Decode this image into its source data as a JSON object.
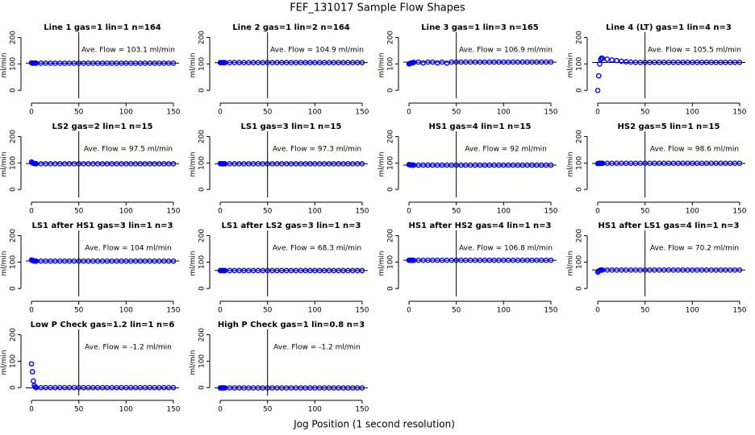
{
  "title": "FEF_131017  Sample Flow Shapes",
  "xlabel": "Jog Position (1 second resolution)",
  "chart_data": [
    {
      "type": "scatter",
      "title": "Line 1 gas=1 lin=1 n=164",
      "ylabel": "ml/min",
      "annotation": "Ave. Flow = 103.1  ml/min",
      "color": "#0000ff",
      "xlim": [
        -6,
        156
      ],
      "ylim": [
        -30,
        220
      ],
      "xticks": [
        0,
        50,
        100,
        150
      ],
      "yticks": [
        0,
        100,
        200
      ],
      "vline": 50,
      "hline": 103.1,
      "x": [
        0,
        1,
        2,
        3,
        4,
        5,
        10,
        15,
        20,
        25,
        30,
        35,
        40,
        45,
        50,
        55,
        60,
        65,
        70,
        75,
        80,
        85,
        90,
        95,
        100,
        105,
        110,
        115,
        120,
        125,
        130,
        135,
        140,
        145,
        150
      ],
      "values": [
        104,
        103,
        103,
        103,
        103,
        103,
        103,
        103,
        103,
        103,
        103,
        103,
        103,
        103,
        103,
        103,
        103,
        103,
        103,
        103,
        103,
        103,
        103,
        103,
        103,
        103,
        103,
        103,
        103,
        103,
        103,
        103,
        103,
        103,
        103
      ]
    },
    {
      "type": "scatter",
      "title": "Line 2 gas=1 lin=2 n=164",
      "ylabel": "ml/min",
      "annotation": "Ave. Flow = 104.9  ml/min",
      "color": "#0000ff",
      "xlim": [
        -6,
        156
      ],
      "ylim": [
        -30,
        220
      ],
      "xticks": [
        0,
        50,
        100,
        150
      ],
      "yticks": [
        0,
        100,
        200
      ],
      "vline": 50,
      "hline": 104.9,
      "x": [
        0,
        1,
        2,
        3,
        4,
        5,
        10,
        15,
        20,
        25,
        30,
        35,
        40,
        45,
        50,
        55,
        60,
        65,
        70,
        75,
        80,
        85,
        90,
        95,
        100,
        105,
        110,
        115,
        120,
        125,
        130,
        135,
        140,
        145,
        150
      ],
      "values": [
        105,
        105,
        105,
        105,
        105,
        105,
        105,
        105,
        105,
        105,
        105,
        105,
        105,
        105,
        105,
        105,
        105,
        105,
        105,
        105,
        105,
        105,
        105,
        105,
        105,
        105,
        105,
        105,
        105,
        105,
        105,
        105,
        105,
        105,
        105
      ]
    },
    {
      "type": "scatter",
      "title": "Line 3 gas=1 lin=3 n=165",
      "ylabel": "ml/min",
      "annotation": "Ave. Flow = 106.9  ml/min",
      "color": "#0000ff",
      "xlim": [
        -6,
        156
      ],
      "ylim": [
        -30,
        220
      ],
      "xticks": [
        0,
        50,
        100,
        150
      ],
      "yticks": [
        0,
        100,
        200
      ],
      "vline": 50,
      "hline": 106.9,
      "x": [
        0,
        1,
        2,
        3,
        4,
        5,
        10,
        15,
        20,
        25,
        30,
        35,
        40,
        45,
        50,
        55,
        60,
        65,
        70,
        75,
        80,
        85,
        90,
        95,
        100,
        105,
        110,
        115,
        120,
        125,
        130,
        135,
        140,
        145,
        150
      ],
      "values": [
        100,
        102,
        103,
        104,
        105,
        106,
        107,
        104,
        107,
        107,
        104,
        107,
        103,
        107,
        107,
        107,
        107,
        107,
        107,
        107,
        107,
        107,
        107,
        107,
        107,
        107,
        107,
        107,
        107,
        107,
        107,
        107,
        107,
        107,
        107
      ]
    },
    {
      "type": "scatter",
      "title": "Line 4 (LT) gas=1 lin=4 n=3",
      "ylabel": "ml/min",
      "annotation": "Ave. Flow = 105.5  ml/min",
      "color": "#0000ff",
      "xlim": [
        -6,
        156
      ],
      "ylim": [
        -30,
        220
      ],
      "xticks": [
        0,
        50,
        100,
        150
      ],
      "yticks": [
        0,
        100,
        200
      ],
      "vline": 50,
      "hline": 105.5,
      "x": [
        0,
        1,
        2,
        3,
        4,
        5,
        10,
        15,
        20,
        25,
        30,
        35,
        40,
        45,
        50,
        55,
        60,
        65,
        70,
        75,
        80,
        85,
        90,
        95,
        100,
        105,
        110,
        115,
        120,
        125,
        130,
        135,
        140,
        145,
        150
      ],
      "values": [
        0,
        55,
        100,
        117,
        122,
        121,
        118,
        115,
        113,
        110,
        108,
        107,
        106,
        106,
        106,
        106,
        106,
        106,
        106,
        106,
        106,
        106,
        106,
        106,
        106,
        106,
        106,
        106,
        106,
        106,
        106,
        106,
        106,
        106,
        106
      ]
    },
    {
      "type": "scatter",
      "title": "LS2 gas=2 lin=1 n=15",
      "ylabel": "ml/min",
      "annotation": "Ave. Flow = 97.5  ml/min",
      "color": "#0000ff",
      "xlim": [
        -6,
        156
      ],
      "ylim": [
        -30,
        220
      ],
      "xticks": [
        0,
        50,
        100,
        150
      ],
      "yticks": [
        0,
        100,
        200
      ],
      "vline": 50,
      "hline": 97.5,
      "x": [
        0,
        1,
        2,
        3,
        4,
        5,
        10,
        15,
        20,
        25,
        30,
        35,
        40,
        45,
        50,
        55,
        60,
        65,
        70,
        75,
        80,
        85,
        90,
        95,
        100,
        105,
        110,
        115,
        120,
        125,
        130,
        135,
        140,
        145,
        150
      ],
      "values": [
        104,
        101,
        99,
        98,
        98,
        97,
        97,
        97,
        97,
        97,
        97,
        97,
        97,
        97,
        97,
        97,
        97,
        97,
        97,
        97,
        97,
        97,
        97,
        97,
        97,
        97,
        97,
        97,
        97,
        97,
        97,
        97,
        97,
        97,
        97
      ]
    },
    {
      "type": "scatter",
      "title": "LS1 gas=3 lin=1 n=15",
      "ylabel": "ml/min",
      "annotation": "Ave. Flow = 97.3  ml/min",
      "color": "#0000ff",
      "xlim": [
        -6,
        156
      ],
      "ylim": [
        -30,
        220
      ],
      "xticks": [
        0,
        50,
        100,
        150
      ],
      "yticks": [
        0,
        100,
        200
      ],
      "vline": 50,
      "hline": 97.3,
      "x": [
        0,
        1,
        2,
        3,
        4,
        5,
        10,
        15,
        20,
        25,
        30,
        35,
        40,
        45,
        50,
        55,
        60,
        65,
        70,
        75,
        80,
        85,
        90,
        95,
        100,
        105,
        110,
        115,
        120,
        125,
        130,
        135,
        140,
        145,
        150
      ],
      "values": [
        98,
        97,
        97,
        97,
        97,
        97,
        97,
        97,
        97,
        97,
        97,
        97,
        97,
        97,
        97,
        97,
        97,
        97,
        97,
        97,
        97,
        97,
        97,
        97,
        97,
        97,
        97,
        97,
        97,
        97,
        97,
        97,
        97,
        97,
        97
      ]
    },
    {
      "type": "scatter",
      "title": "HS1 gas=4 lin=1 n=15",
      "ylabel": "ml/min",
      "annotation": "Ave. Flow = 92  ml/min",
      "color": "#0000ff",
      "xlim": [
        -6,
        156
      ],
      "ylim": [
        -30,
        220
      ],
      "xticks": [
        0,
        50,
        100,
        150
      ],
      "yticks": [
        0,
        100,
        200
      ],
      "vline": 50,
      "hline": 92,
      "x": [
        0,
        1,
        2,
        3,
        4,
        5,
        10,
        15,
        20,
        25,
        30,
        35,
        40,
        45,
        50,
        55,
        60,
        65,
        70,
        75,
        80,
        85,
        90,
        95,
        100,
        105,
        110,
        115,
        120,
        125,
        130,
        135,
        140,
        145,
        150
      ],
      "values": [
        94,
        93,
        93,
        92,
        92,
        92,
        92,
        92,
        92,
        92,
        92,
        92,
        92,
        92,
        92,
        92,
        92,
        92,
        92,
        92,
        92,
        92,
        92,
        92,
        92,
        92,
        92,
        92,
        92,
        92,
        92,
        92,
        92,
        92,
        92
      ]
    },
    {
      "type": "scatter",
      "title": "HS2 gas=5 lin=1 n=15",
      "ylabel": "ml/min",
      "annotation": "Ave. Flow = 98.6  ml/min",
      "color": "#0000ff",
      "xlim": [
        -6,
        156
      ],
      "ylim": [
        -30,
        220
      ],
      "xticks": [
        0,
        50,
        100,
        150
      ],
      "yticks": [
        0,
        100,
        200
      ],
      "vline": 50,
      "hline": 98.6,
      "x": [
        0,
        1,
        2,
        3,
        4,
        5,
        10,
        15,
        20,
        25,
        30,
        35,
        40,
        45,
        50,
        55,
        60,
        65,
        70,
        75,
        80,
        85,
        90,
        95,
        100,
        105,
        110,
        115,
        120,
        125,
        130,
        135,
        140,
        145,
        150
      ],
      "values": [
        98,
        99,
        99,
        99,
        99,
        99,
        99,
        99,
        99,
        99,
        99,
        99,
        99,
        99,
        99,
        99,
        99,
        99,
        99,
        99,
        99,
        99,
        99,
        99,
        99,
        99,
        99,
        99,
        99,
        99,
        99,
        99,
        99,
        99,
        99
      ]
    },
    {
      "type": "scatter",
      "title": "LS1 after HS1 gas=3 lin=1 n=3",
      "ylabel": "ml/min",
      "annotation": "Ave. Flow = 104  ml/min",
      "color": "#0000ff",
      "xlim": [
        -6,
        156
      ],
      "ylim": [
        -30,
        220
      ],
      "xticks": [
        0,
        50,
        100,
        150
      ],
      "yticks": [
        0,
        100,
        200
      ],
      "vline": 50,
      "hline": 104,
      "x": [
        0,
        1,
        2,
        3,
        4,
        5,
        10,
        15,
        20,
        25,
        30,
        35,
        40,
        45,
        50,
        55,
        60,
        65,
        70,
        75,
        80,
        85,
        90,
        95,
        100,
        105,
        110,
        115,
        120,
        125,
        130,
        135,
        140,
        145,
        150
      ],
      "values": [
        108,
        106,
        105,
        104,
        104,
        104,
        104,
        104,
        104,
        104,
        104,
        104,
        104,
        104,
        104,
        104,
        104,
        104,
        104,
        104,
        104,
        104,
        104,
        104,
        104,
        104,
        104,
        104,
        104,
        104,
        104,
        104,
        104,
        104,
        104
      ]
    },
    {
      "type": "scatter",
      "title": "LS1 after LS2 gas=3 lin=1 n=3",
      "ylabel": "ml/min",
      "annotation": "Ave. Flow = 68.3  ml/min",
      "color": "#0000ff",
      "xlim": [
        -6,
        156
      ],
      "ylim": [
        -30,
        220
      ],
      "xticks": [
        0,
        50,
        100,
        150
      ],
      "yticks": [
        0,
        100,
        200
      ],
      "vline": 50,
      "hline": 68.3,
      "x": [
        0,
        1,
        2,
        3,
        4,
        5,
        10,
        15,
        20,
        25,
        30,
        35,
        40,
        45,
        50,
        55,
        60,
        65,
        70,
        75,
        80,
        85,
        90,
        95,
        100,
        105,
        110,
        115,
        120,
        125,
        130,
        135,
        140,
        145,
        150
      ],
      "values": [
        68,
        68,
        68,
        68,
        68,
        68,
        68,
        68,
        68,
        68,
        68,
        68,
        68,
        68,
        68,
        68,
        68,
        68,
        68,
        68,
        68,
        68,
        68,
        68,
        68,
        68,
        68,
        68,
        68,
        68,
        68,
        68,
        68,
        68,
        68
      ]
    },
    {
      "type": "scatter",
      "title": "HS1 after HS2 gas=4 lin=1 n=3",
      "ylabel": "ml/min",
      "annotation": "Ave. Flow = 106.8  ml/min",
      "color": "#0000ff",
      "xlim": [
        -6,
        156
      ],
      "ylim": [
        -30,
        220
      ],
      "xticks": [
        0,
        50,
        100,
        150
      ],
      "yticks": [
        0,
        100,
        200
      ],
      "vline": 50,
      "hline": 106.8,
      "x": [
        0,
        1,
        2,
        3,
        4,
        5,
        10,
        15,
        20,
        25,
        30,
        35,
        40,
        45,
        50,
        55,
        60,
        65,
        70,
        75,
        80,
        85,
        90,
        95,
        100,
        105,
        110,
        115,
        120,
        125,
        130,
        135,
        140,
        145,
        150
      ],
      "values": [
        107,
        107,
        107,
        107,
        107,
        107,
        107,
        107,
        107,
        107,
        107,
        107,
        107,
        107,
        107,
        107,
        107,
        107,
        107,
        107,
        107,
        107,
        107,
        107,
        107,
        107,
        107,
        107,
        107,
        107,
        107,
        107,
        107,
        107,
        107
      ]
    },
    {
      "type": "scatter",
      "title": "HS1 after LS1 gas=4 lin=1 n=3",
      "ylabel": "ml/min",
      "annotation": "Ave. Flow = 70.2  ml/min",
      "color": "#0000ff",
      "xlim": [
        -6,
        156
      ],
      "ylim": [
        -30,
        220
      ],
      "xticks": [
        0,
        50,
        100,
        150
      ],
      "yticks": [
        0,
        100,
        200
      ],
      "vline": 50,
      "hline": 70.2,
      "x": [
        0,
        1,
        2,
        3,
        4,
        5,
        10,
        15,
        20,
        25,
        30,
        35,
        40,
        45,
        50,
        55,
        60,
        65,
        70,
        75,
        80,
        85,
        90,
        95,
        100,
        105,
        110,
        115,
        120,
        125,
        130,
        135,
        140,
        145,
        150
      ],
      "values": [
        62,
        66,
        68,
        70,
        70,
        70,
        70,
        70,
        70,
        70,
        70,
        70,
        70,
        70,
        70,
        70,
        70,
        70,
        70,
        70,
        70,
        70,
        70,
        70,
        70,
        70,
        70,
        70,
        70,
        70,
        70,
        70,
        70,
        70,
        70
      ]
    },
    {
      "type": "scatter",
      "title": "Low P Check gas=1.2 lin=1 n=6",
      "ylabel": "ml/min",
      "annotation": "Ave. Flow = -1.2  ml/min",
      "color": "#0000ff",
      "xlim": [
        -6,
        156
      ],
      "ylim": [
        -30,
        220
      ],
      "xticks": [
        0,
        50,
        100,
        150
      ],
      "yticks": [
        0,
        100,
        200
      ],
      "vline": 50,
      "hline": -1.2,
      "x": [
        0,
        1,
        2,
        3,
        4,
        5,
        10,
        15,
        20,
        25,
        30,
        35,
        40,
        45,
        50,
        55,
        60,
        65,
        70,
        75,
        80,
        85,
        90,
        95,
        100,
        105,
        110,
        115,
        120,
        125,
        130,
        135,
        140,
        145,
        150
      ],
      "values": [
        90,
        60,
        25,
        8,
        2,
        0,
        0,
        0,
        0,
        0,
        0,
        0,
        0,
        0,
        0,
        0,
        0,
        0,
        0,
        0,
        0,
        0,
        0,
        0,
        0,
        0,
        0,
        0,
        0,
        0,
        0,
        0,
        0,
        0,
        0
      ]
    },
    {
      "type": "scatter",
      "title": "High P Check gas=1 lin=0.8 n=3",
      "ylabel": "ml/min",
      "annotation": "Ave. Flow = -1.2  ml/min",
      "color": "#0000ff",
      "xlim": [
        -6,
        156
      ],
      "ylim": [
        -30,
        220
      ],
      "xticks": [
        0,
        50,
        100,
        150
      ],
      "yticks": [
        0,
        100,
        200
      ],
      "vline": 50,
      "hline": -1.2,
      "x": [
        0,
        1,
        2,
        3,
        4,
        5,
        10,
        15,
        20,
        25,
        30,
        35,
        40,
        45,
        50,
        55,
        60,
        65,
        70,
        75,
        80,
        85,
        90,
        95,
        100,
        105,
        110,
        115,
        120,
        125,
        130,
        135,
        140,
        145,
        150
      ],
      "values": [
        -1,
        -1,
        -1,
        -1,
        -1,
        -1,
        -1,
        -1,
        -1,
        -1,
        -1,
        -1,
        -1,
        -1,
        -1,
        -1,
        -1,
        -1,
        -1,
        -1,
        -1,
        -1,
        -1,
        -1,
        -1,
        -1,
        -1,
        -1,
        -1,
        -1,
        -1,
        -1,
        -1,
        -1,
        -1
      ]
    }
  ]
}
